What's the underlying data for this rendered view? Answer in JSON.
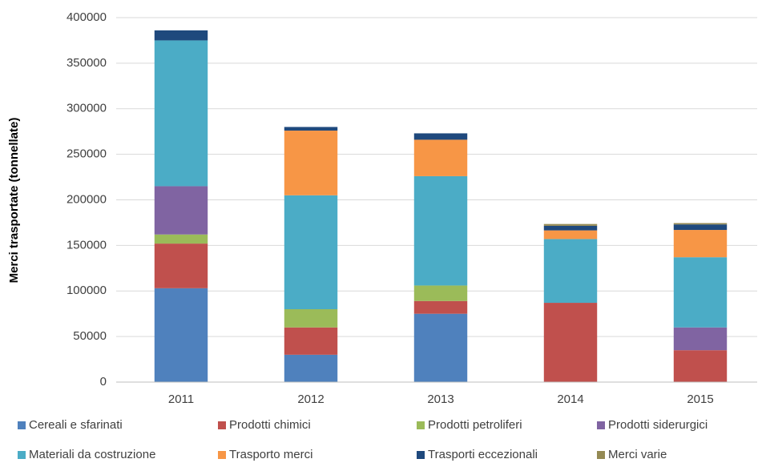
{
  "chart_data": {
    "type": "stacked_bar",
    "y_label": "Merci trasportate (tonnellate)",
    "categories": [
      "2011",
      "2012",
      "2013",
      "2014",
      "2015"
    ],
    "series": [
      {
        "name": "Cereali e sfarinati",
        "color": "#4f81bd",
        "values": [
          103000,
          30000,
          75000,
          0,
          0
        ]
      },
      {
        "name": "Prodotti chimici",
        "color": "#c0504d",
        "values": [
          49000,
          30000,
          14000,
          87000,
          35000
        ]
      },
      {
        "name": "Prodotti petroliferi",
        "color": "#9bbb59",
        "values": [
          10000,
          20000,
          17000,
          0,
          0
        ]
      },
      {
        "name": "Prodotti siderurgici",
        "color": "#8064a2",
        "values": [
          53000,
          0,
          0,
          0,
          25000
        ]
      },
      {
        "name": "Materiali da costruzione",
        "color": "#4bacc6",
        "values": [
          160000,
          125000,
          120000,
          70000,
          77000
        ]
      },
      {
        "name": "Trasporto merci",
        "color": "#f79646",
        "values": [
          0,
          71000,
          40000,
          9500,
          30000
        ]
      },
      {
        "name": "Trasporti eccezionali",
        "color": "#1f497d",
        "values": [
          11000,
          4000,
          7000,
          5000,
          6000
        ]
      },
      {
        "name": "Merci varie",
        "color": "#948a54",
        "values": [
          0,
          0,
          0,
          2000,
          1500
        ]
      }
    ],
    "ylim": [
      0,
      400000
    ],
    "yticks": [
      0,
      50000,
      100000,
      150000,
      200000,
      250000,
      300000,
      350000,
      400000
    ],
    "grid": true
  }
}
